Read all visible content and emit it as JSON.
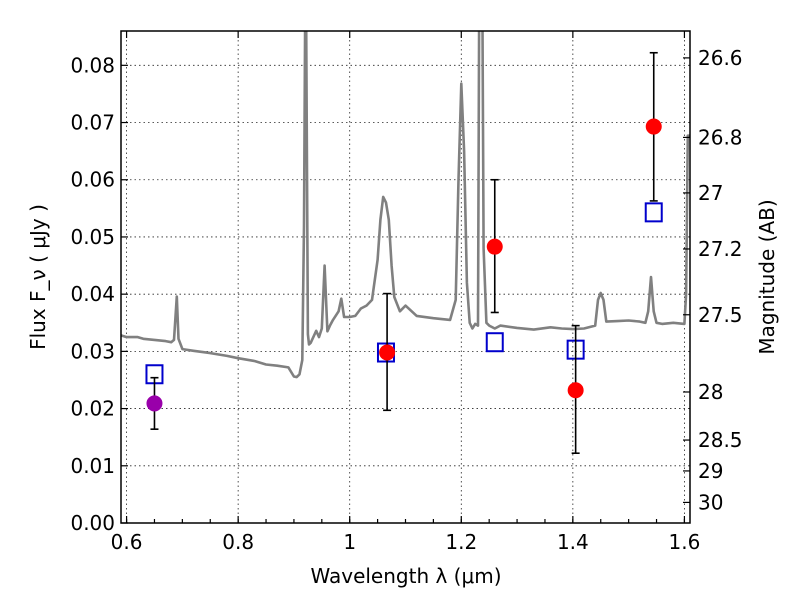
{
  "chart_data": {
    "type": "scatter",
    "xlabel": "Wavelength  λ (μm)",
    "ylabel": "Flux  F_ν  ( μJy )",
    "ylabel_right": "Magnitude (AB)",
    "xlim": [
      0.59,
      1.61
    ],
    "ylim": [
      0.0,
      0.086
    ],
    "grid": true,
    "x_ticks": [
      0.6,
      0.8,
      1.0,
      1.2,
      1.4,
      1.6
    ],
    "x_tick_labels": [
      "0.6",
      "0.8",
      "1",
      "1.2",
      "1.4",
      "1.6"
    ],
    "y_ticks": [
      0.0,
      0.01,
      0.02,
      0.03,
      0.04,
      0.05,
      0.06,
      0.07,
      0.08
    ],
    "y_tick_labels": [
      "0.00",
      "0.01",
      "0.02",
      "0.03",
      "0.04",
      "0.05",
      "0.06",
      "0.07",
      "0.08"
    ],
    "mag_ticks": [
      {
        "flux": 0.0813,
        "label": "26.6"
      },
      {
        "flux": 0.0674,
        "label": "26.8"
      },
      {
        "flux": 0.0577,
        "label": "27"
      },
      {
        "flux": 0.0479,
        "label": "27.2"
      },
      {
        "flux": 0.0364,
        "label": "27.5"
      },
      {
        "flux": 0.0229,
        "label": "28"
      },
      {
        "flux": 0.0145,
        "label": "28.5"
      },
      {
        "flux": 0.0091,
        "label": "29"
      },
      {
        "flux": 0.0036,
        "label": "30"
      }
    ],
    "series": [
      {
        "kind": "line",
        "color": "#808080",
        "x": [
          0.59,
          0.6,
          0.62,
          0.63,
          0.65,
          0.67,
          0.68,
          0.685,
          0.69,
          0.693,
          0.7,
          0.72,
          0.75,
          0.78,
          0.8,
          0.83,
          0.85,
          0.87,
          0.89,
          0.9,
          0.905,
          0.91,
          0.915,
          0.918,
          0.92,
          0.922,
          0.925,
          0.927,
          0.93,
          0.94,
          0.945,
          0.95,
          0.955,
          0.96,
          0.965,
          0.97,
          0.98,
          0.985,
          0.99,
          1.0,
          1.01,
          1.02,
          1.03,
          1.04,
          1.05,
          1.055,
          1.06,
          1.065,
          1.07,
          1.075,
          1.08,
          1.09,
          1.1,
          1.12,
          1.15,
          1.18,
          1.19,
          1.195,
          1.2,
          1.205,
          1.21,
          1.215,
          1.22,
          1.225,
          1.23,
          1.232,
          1.235,
          1.238,
          1.24,
          1.245,
          1.25,
          1.26,
          1.27,
          1.3,
          1.33,
          1.36,
          1.38,
          1.4,
          1.42,
          1.44,
          1.445,
          1.45,
          1.455,
          1.46,
          1.48,
          1.5,
          1.52,
          1.53,
          1.535,
          1.54,
          1.545,
          1.55,
          1.56,
          1.58,
          1.6,
          1.603,
          1.606,
          1.61
        ],
        "y": [
          0.0328,
          0.0325,
          0.0325,
          0.0322,
          0.032,
          0.0318,
          0.0316,
          0.032,
          0.0396,
          0.0322,
          0.0304,
          0.0301,
          0.0297,
          0.0292,
          0.0288,
          0.0283,
          0.0277,
          0.0275,
          0.0272,
          0.0256,
          0.0255,
          0.026,
          0.0285,
          0.052,
          0.087,
          0.087,
          0.033,
          0.0312,
          0.0315,
          0.0336,
          0.0325,
          0.034,
          0.045,
          0.0335,
          0.0346,
          0.0355,
          0.037,
          0.0392,
          0.036,
          0.036,
          0.0362,
          0.0375,
          0.038,
          0.039,
          0.046,
          0.053,
          0.057,
          0.056,
          0.053,
          0.045,
          0.0395,
          0.037,
          0.038,
          0.0362,
          0.0358,
          0.0355,
          0.039,
          0.06,
          0.0768,
          0.065,
          0.042,
          0.035,
          0.034,
          0.0348,
          0.0345,
          0.087,
          0.087,
          0.087,
          0.048,
          0.035,
          0.0345,
          0.034,
          0.0345,
          0.0341,
          0.0338,
          0.0342,
          0.034,
          0.0339,
          0.034,
          0.0345,
          0.039,
          0.0402,
          0.039,
          0.0352,
          0.0353,
          0.0354,
          0.0352,
          0.035,
          0.037,
          0.043,
          0.037,
          0.035,
          0.0348,
          0.035,
          0.0348,
          0.04,
          0.0677,
          0.0677
        ]
      },
      {
        "kind": "points",
        "marker": "open-square",
        "color": "#0000cc",
        "x": [
          0.65,
          1.065,
          1.26,
          1.405,
          1.545
        ],
        "y": [
          0.026,
          0.0298,
          0.0316,
          0.0303,
          0.0543
        ]
      },
      {
        "kind": "points",
        "marker": "filled-circle",
        "color": "#ff0000",
        "x": [
          1.067,
          1.26,
          1.405,
          1.545
        ],
        "y": [
          0.0298,
          0.0483,
          0.0232,
          0.0693
        ],
        "yerr_low": [
          0.0197,
          0.0368,
          0.0122,
          0.0563
        ],
        "yerr_high": [
          0.0401,
          0.06,
          0.0345,
          0.0822
        ]
      },
      {
        "kind": "points",
        "marker": "filled-circle",
        "color": "#9900aa",
        "x": [
          0.65
        ],
        "y": [
          0.0209
        ],
        "yerr_low": [
          0.0164
        ],
        "yerr_high": [
          0.0254
        ]
      }
    ]
  }
}
